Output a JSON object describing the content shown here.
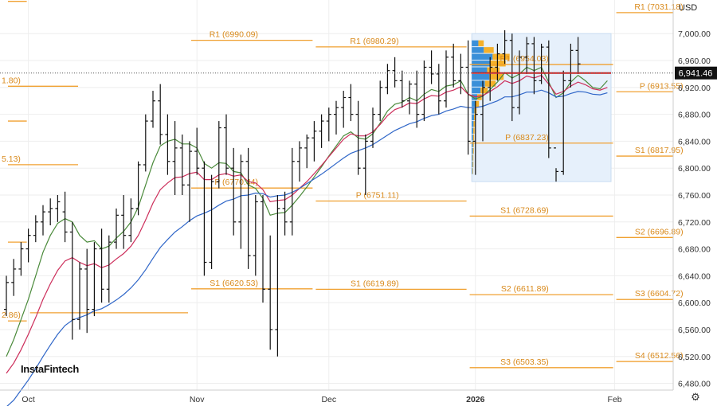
{
  "chart_data": {
    "type": "ohlc",
    "currency": "USD",
    "watermark": "InstaFintech",
    "ylim": [
      6470,
      7050
    ],
    "y_ticks": [
      6480,
      6520,
      6560,
      6600,
      6640,
      6680,
      6720,
      6760,
      6800,
      6840,
      6880,
      6920,
      6960,
      7000
    ],
    "y_tick_labels": [
      "6,480.00",
      "6,520.00",
      "6,560.00",
      "6,600.00",
      "6,640.00",
      "6,680.00",
      "6,720.00",
      "6,760.00",
      "6,800.00",
      "6,840.00",
      "6,880.00",
      "6,920.00",
      "6,960.00",
      "7,000.00"
    ],
    "x_labels": [
      {
        "label": "Oct",
        "index": 3
      },
      {
        "label": "Nov",
        "index": 26
      },
      {
        "label": "Dec",
        "index": 44
      },
      {
        "label": "2026",
        "index": 64,
        "bold": true
      },
      {
        "label": "Feb",
        "index": 83
      }
    ],
    "last_price": {
      "value": 6941.46,
      "label": "6,941.46"
    },
    "pivot_levels": [
      {
        "label": "1.80)",
        "value": 6921.8,
        "i0": 0,
        "i1": 10
      },
      {
        "label": "5.13)",
        "value": 6805.13,
        "i0": 0,
        "i1": 10
      },
      {
        "label": "2.86)",
        "value": 6572.86,
        "i0": 0,
        "i1": 3
      },
      {
        "label": "",
        "value": 6870,
        "i0": 0,
        "i1": 3
      },
      {
        "label": "",
        "value": 6690,
        "i0": 0,
        "i1": 3
      },
      {
        "label": "",
        "value": 7048,
        "i0": 0,
        "i1": 3
      },
      {
        "label": "",
        "value": 6585,
        "i0": 3,
        "i1": 25
      },
      {
        "label": "R1 (6990.09)",
        "value": 6990.09,
        "i0": 25,
        "i1": 42
      },
      {
        "label": "P (6770.44)",
        "value": 6770.44,
        "i0": 25,
        "i1": 42
      },
      {
        "label": "S1 (6620.53)",
        "value": 6620.53,
        "i0": 25,
        "i1": 42
      },
      {
        "label": "R1 (6980.29)",
        "value": 6980.29,
        "i0": 42,
        "i1": 63
      },
      {
        "label": "P (6751.11)",
        "value": 6751.11,
        "i0": 42,
        "i1": 63
      },
      {
        "label": "S1 (6619.89)",
        "value": 6619.89,
        "i0": 42,
        "i1": 63
      },
      {
        "label": "R1 (6954.03)",
        "value": 6954.03,
        "i0": 63,
        "i1": 83
      },
      {
        "label": "P (6837.23)",
        "value": 6837.23,
        "i0": 63,
        "i1": 83
      },
      {
        "label": "S1 (6728.69)",
        "value": 6728.69,
        "i0": 63,
        "i1": 83
      },
      {
        "label": "S2 (6611.89)",
        "value": 6611.89,
        "i0": 63,
        "i1": 83
      },
      {
        "label": "S3 (6503.35)",
        "value": 6503.35,
        "i0": 63,
        "i1": 83
      },
      {
        "label": "R1 (7031.18)",
        "value": 7031.18,
        "i0": 83,
        "i1": 100
      },
      {
        "label": "P (6913.55)",
        "value": 6913.55,
        "i0": 83,
        "i1": 100
      },
      {
        "label": "S1 (6817.95)",
        "value": 6817.95,
        "i0": 83,
        "i1": 100
      },
      {
        "label": "S2 (6696.89)",
        "value": 6696.89,
        "i0": 83,
        "i1": 100
      },
      {
        "label": "S3 (6604.72)",
        "value": 6604.72,
        "i0": 83,
        "i1": 100
      },
      {
        "label": "S4 (6512.56)",
        "value": 6512.56,
        "i0": 83,
        "i1": 100
      }
    ],
    "bars": [
      [
        6590,
        6640,
        6580,
        6630
      ],
      [
        6630,
        6665,
        6610,
        6650
      ],
      [
        6650,
        6690,
        6640,
        6680
      ],
      [
        6680,
        6710,
        6660,
        6700
      ],
      [
        6700,
        6730,
        6690,
        6720
      ],
      [
        6720,
        6745,
        6700,
        6735
      ],
      [
        6735,
        6755,
        6715,
        6740
      ],
      [
        6740,
        6760,
        6720,
        6750
      ],
      [
        6735,
        6765,
        6690,
        6705
      ],
      [
        6705,
        6720,
        6545,
        6575
      ],
      [
        6575,
        6660,
        6560,
        6650
      ],
      [
        6650,
        6680,
        6555,
        6590
      ],
      [
        6590,
        6690,
        6580,
        6680
      ],
      [
        6680,
        6710,
        6600,
        6620
      ],
      [
        6620,
        6700,
        6600,
        6690
      ],
      [
        6690,
        6740,
        6680,
        6730
      ],
      [
        6730,
        6760,
        6680,
        6700
      ],
      [
        6700,
        6755,
        6690,
        6740
      ],
      [
        6740,
        6810,
        6730,
        6805
      ],
      [
        6805,
        6880,
        6795,
        6870
      ],
      [
        6870,
        6915,
        6860,
        6900
      ],
      [
        6900,
        6925,
        6835,
        6850
      ],
      [
        6850,
        6880,
        6790,
        6810
      ],
      [
        6810,
        6870,
        6760,
        6830
      ],
      [
        6830,
        6850,
        6760,
        6775
      ],
      [
        6775,
        6840,
        6720,
        6825
      ],
      [
        6825,
        6860,
        6790,
        6800
      ],
      [
        6800,
        6810,
        6640,
        6660
      ],
      [
        6660,
        6790,
        6650,
        6780
      ],
      [
        6780,
        6870,
        6770,
        6860
      ],
      [
        6860,
        6880,
        6790,
        6800
      ],
      [
        6800,
        6830,
        6700,
        6720
      ],
      [
        6720,
        6820,
        6680,
        6810
      ],
      [
        6810,
        6830,
        6650,
        6670
      ],
      [
        6670,
        6760,
        6640,
        6750
      ],
      [
        6750,
        6760,
        6600,
        6620
      ],
      [
        6620,
        6700,
        6530,
        6560
      ],
      [
        6560,
        6760,
        6520,
        6740
      ],
      [
        6740,
        6765,
        6700,
        6720
      ],
      [
        6720,
        6830,
        6700,
        6810
      ],
      [
        6810,
        6840,
        6780,
        6830
      ],
      [
        6830,
        6850,
        6800,
        6845
      ],
      [
        6845,
        6870,
        6810,
        6855
      ],
      [
        6855,
        6880,
        6830,
        6870
      ],
      [
        6870,
        6890,
        6840,
        6880
      ],
      [
        6880,
        6900,
        6850,
        6890
      ],
      [
        6890,
        6915,
        6860,
        6905
      ],
      [
        6905,
        6925,
        6870,
        6880
      ],
      [
        6880,
        6900,
        6790,
        6800
      ],
      [
        6800,
        6850,
        6760,
        6840
      ],
      [
        6840,
        6890,
        6830,
        6880
      ],
      [
        6880,
        6930,
        6870,
        6920
      ],
      [
        6920,
        6955,
        6910,
        6945
      ],
      [
        6945,
        6965,
        6920,
        6930
      ],
      [
        6930,
        6945,
        6890,
        6900
      ],
      [
        6900,
        6930,
        6880,
        6925
      ],
      [
        6925,
        6945,
        6860,
        6880
      ],
      [
        6880,
        6960,
        6870,
        6950
      ],
      [
        6950,
        6975,
        6925,
        6940
      ],
      [
        6940,
        6955,
        6880,
        6900
      ],
      [
        6900,
        6975,
        6890,
        6965
      ],
      [
        6965,
        6985,
        6920,
        6930
      ],
      [
        6930,
        6970,
        6910,
        6950
      ],
      [
        6950,
        6990,
        6820,
        6840
      ],
      [
        6840,
        6900,
        6790,
        6880
      ],
      [
        6880,
        6930,
        6840,
        6920
      ],
      [
        6920,
        6965,
        6900,
        6950
      ],
      [
        6950,
        6985,
        6930,
        6970
      ],
      [
        6970,
        7005,
        6955,
        6990
      ],
      [
        6990,
        7000,
        6870,
        6890
      ],
      [
        6890,
        6975,
        6880,
        6965
      ],
      [
        6965,
        6995,
        6940,
        6985
      ],
      [
        6985,
        6995,
        6910,
        6930
      ],
      [
        6930,
        6985,
        6925,
        6980
      ],
      [
        6980,
        6990,
        6815,
        6830
      ],
      [
        6830,
        6800,
        6780,
        6795
      ],
      [
        6795,
        6945,
        6790,
        6930
      ],
      [
        6930,
        6985,
        6920,
        6975
      ],
      [
        6975,
        6995,
        6940,
        6955
      ]
    ],
    "series": [
      {
        "name": "",
        "color": "#4a8a3a",
        "values": [
          6520,
          6545,
          6575,
          6605,
          6640,
          6675,
          6700,
          6718,
          6725,
          6720,
          6700,
          6690,
          6692,
          6680,
          6684,
          6696,
          6706,
          6720,
          6742,
          6775,
          6808,
          6833,
          6840,
          6843,
          6836,
          6836,
          6830,
          6807,
          6800,
          6808,
          6807,
          6795,
          6793,
          6775,
          6770,
          6755,
          6730,
          6733,
          6734,
          6745,
          6758,
          6772,
          6787,
          6802,
          6818,
          6833,
          6848,
          6854,
          6845,
          6843,
          6851,
          6867,
          6885,
          6895,
          6898,
          6905,
          6900,
          6910,
          6917,
          6914,
          6922,
          6924,
          6930,
          6910,
          6903,
          6907,
          6917,
          6928,
          6942,
          6934,
          6940,
          6950,
          6945,
          6950,
          6928,
          6905,
          6912,
          6928,
          6938,
          6930,
          6920,
          6918,
          6930
        ]
      },
      {
        "name": "",
        "color": "#cc2d5a",
        "values": [
          6495,
          6510,
          6530,
          6553,
          6578,
          6605,
          6628,
          6648,
          6662,
          6667,
          6660,
          6655,
          6658,
          6652,
          6656,
          6665,
          6673,
          6684,
          6700,
          6723,
          6748,
          6768,
          6778,
          6786,
          6787,
          6792,
          6794,
          6783,
          6783,
          6790,
          6792,
          6788,
          6790,
          6780,
          6778,
          6768,
          6750,
          6752,
          6753,
          6760,
          6770,
          6780,
          6792,
          6804,
          6817,
          6830,
          6843,
          6851,
          6848,
          6848,
          6854,
          6865,
          6878,
          6887,
          6891,
          6897,
          6896,
          6903,
          6908,
          6907,
          6913,
          6916,
          6921,
          6910,
          6906,
          6908,
          6914,
          6921,
          6930,
          6926,
          6930,
          6937,
          6934,
          6938,
          6925,
          6910,
          6914,
          6922,
          6928,
          6924,
          6918,
          6916,
          6920
        ]
      },
      {
        "name": "",
        "color": "#2f66c8",
        "values": [
          6445,
          6455,
          6470,
          6485,
          6502,
          6520,
          6537,
          6553,
          6566,
          6574,
          6578,
          6582,
          6588,
          6591,
          6597,
          6604,
          6612,
          6622,
          6634,
          6649,
          6666,
          6682,
          6694,
          6705,
          6713,
          6722,
          6729,
          6733,
          6738,
          6745,
          6751,
          6754,
          6759,
          6760,
          6763,
          6762,
          6757,
          6759,
          6760,
          6764,
          6770,
          6777,
          6784,
          6791,
          6799,
          6807,
          6815,
          6822,
          6826,
          6830,
          6835,
          6842,
          6849,
          6856,
          6861,
          6866,
          6869,
          6874,
          6878,
          6880,
          6885,
          6888,
          6892,
          6890,
          6890,
          6892,
          6896,
          6900,
          6906,
          6906,
          6909,
          6913,
          6913,
          6916,
          6912,
          6906,
          6907,
          6911,
          6914,
          6913,
          6910,
          6909,
          6912
        ]
      }
    ],
    "volume_profile_bins": [
      {
        "value": 6985,
        "width": 0.3
      },
      {
        "value": 6975,
        "width": 0.55
      },
      {
        "value": 6965,
        "width": 0.95
      },
      {
        "value": 6955,
        "width": 0.85
      },
      {
        "value": 6945,
        "width": 0.7
      },
      {
        "value": 6935,
        "width": 0.8
      },
      {
        "value": 6925,
        "width": 0.6
      },
      {
        "value": 6915,
        "width": 0.4
      },
      {
        "value": 6905,
        "width": 0.25
      },
      {
        "value": 6895,
        "width": 0.18
      },
      {
        "value": 6885,
        "width": 0.12
      },
      {
        "value": 6875,
        "width": 0.1
      },
      {
        "value": 6865,
        "width": 0.08
      },
      {
        "value": 6855,
        "width": 0.07
      },
      {
        "value": 6845,
        "width": 0.06
      },
      {
        "value": 6835,
        "width": 0.05
      },
      {
        "value": 6825,
        "width": 0.05
      },
      {
        "value": 6815,
        "width": 0.04
      },
      {
        "value": 6805,
        "width": 0.04
      },
      {
        "value": 6795,
        "width": 0.03
      }
    ],
    "poc_value": 6941.46
  },
  "colors": {
    "pivot": "#f0a030",
    "pivot_text": "#d98a1c",
    "bar": "#111111",
    "grid": "#eeeeee",
    "axis_text": "#333333",
    "price_tag_bg": "#111111",
    "price_tag_text": "#ffffff",
    "poc": "#d42020",
    "vp_box": "#e6f0fb",
    "vp_box_border": "#c8dcf2",
    "vp_blue": "#3a8fd8",
    "vp_orange": "#f5b02a"
  }
}
